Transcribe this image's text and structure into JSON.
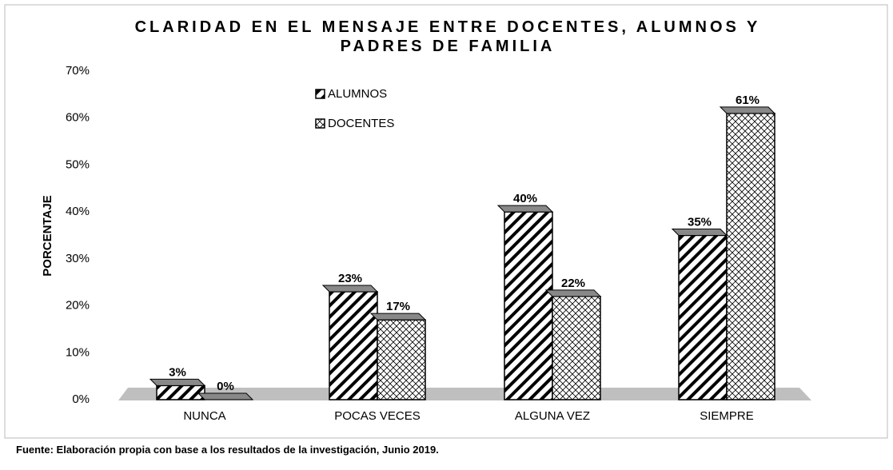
{
  "chart_data": {
    "type": "bar",
    "title": "CLARIDAD EN EL MENSAJE ENTRE DOCENTES, ALUMNOS Y PADRES DE FAMILIA",
    "y_label": "PORCENTAJE",
    "source": "Fuente: Elaboración propia con base a los resultados de la investigación, Junio 2019.",
    "categories": [
      "NUNCA",
      "POCAS VECES",
      "ALGUNA VEZ",
      "SIEMPRE"
    ],
    "series": [
      {
        "name": "ALUMNOS",
        "color": "#000000",
        "values": [
          3,
          23,
          40,
          35
        ],
        "value_labels": [
          "3%",
          "23%",
          "40%",
          "35%"
        ]
      },
      {
        "name": "DOCENTES",
        "color": "#000000",
        "values": [
          0,
          17,
          22,
          61
        ],
        "value_labels": [
          "0%",
          "17%",
          "22%",
          "61%"
        ]
      }
    ],
    "ylim": [
      0,
      70
    ],
    "yticks": [
      {
        "value": 0,
        "label": "0%"
      },
      {
        "value": 10,
        "label": "10%"
      },
      {
        "value": 20,
        "label": "20%"
      },
      {
        "value": 30,
        "label": "30%"
      },
      {
        "value": 40,
        "label": "40%"
      },
      {
        "value": 50,
        "label": "50%"
      },
      {
        "value": 60,
        "label": "60%"
      },
      {
        "value": 70,
        "label": "70%"
      }
    ],
    "grid": false
  }
}
